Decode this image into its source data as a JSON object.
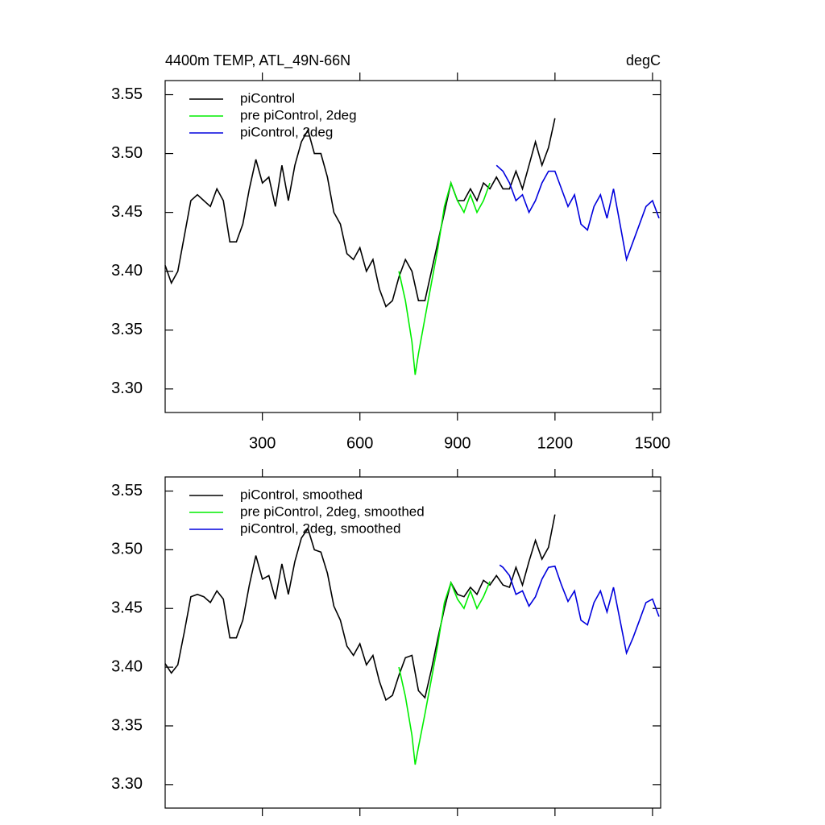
{
  "chart_data": [
    {
      "type": "line",
      "title": "4400m TEMP, ATL_49N-66N",
      "right_title": "degC",
      "xlim": [
        1,
        1525
      ],
      "xticks": [
        300,
        600,
        900,
        1200,
        1500
      ],
      "ylim": [
        3.28,
        3.562
      ],
      "yticks": [
        {
          "value": 3.3,
          "label": "3.30"
        },
        3.35,
        {
          "value": 3.4,
          "label": "3.40"
        },
        3.45,
        {
          "value": 3.5,
          "label": "3.50"
        },
        3.55
      ],
      "series": [
        {
          "name": "piControl",
          "color": "#000000",
          "x": [
            1,
            20,
            40,
            60,
            80,
            100,
            120,
            140,
            160,
            180,
            200,
            220,
            240,
            260,
            280,
            300,
            320,
            340,
            360,
            380,
            400,
            420,
            440,
            460,
            480,
            500,
            520,
            540,
            560,
            580,
            600,
            620,
            640,
            660,
            680,
            700,
            720,
            740,
            760,
            780,
            800,
            820,
            840,
            860,
            880,
            900,
            920,
            940,
            960,
            980,
            1000,
            1020,
            1040,
            1060,
            1080,
            1100,
            1120,
            1140,
            1160,
            1180,
            1200
          ],
          "values": [
            3.405,
            3.39,
            3.4,
            3.43,
            3.46,
            3.465,
            3.46,
            3.455,
            3.47,
            3.46,
            3.425,
            3.425,
            3.44,
            3.47,
            3.495,
            3.475,
            3.48,
            3.455,
            3.49,
            3.46,
            3.49,
            3.51,
            3.52,
            3.5,
            3.5,
            3.48,
            3.45,
            3.44,
            3.415,
            3.41,
            3.42,
            3.4,
            3.41,
            3.385,
            3.37,
            3.375,
            3.395,
            3.41,
            3.4,
            3.375,
            3.375,
            3.4,
            3.425,
            3.45,
            3.475,
            3.46,
            3.46,
            3.47,
            3.46,
            3.475,
            3.47,
            3.48,
            3.47,
            3.47,
            3.485,
            3.47,
            3.49,
            3.51,
            3.49,
            3.505,
            3.53
          ]
        },
        {
          "name": "pre piControl, 2deg",
          "color": "#00ee00",
          "x": [
            720,
            740,
            760,
            770,
            780,
            800,
            820,
            840,
            860,
            880,
            900,
            920,
            940,
            960,
            980,
            1000
          ],
          "values": [
            3.4,
            3.375,
            3.34,
            3.312,
            3.33,
            3.36,
            3.39,
            3.42,
            3.455,
            3.475,
            3.46,
            3.45,
            3.465,
            3.45,
            3.46,
            3.475
          ]
        },
        {
          "name": "piControl, 2deg",
          "color": "#0000dd",
          "x": [
            1020,
            1040,
            1060,
            1080,
            1100,
            1120,
            1140,
            1160,
            1180,
            1200,
            1220,
            1240,
            1260,
            1280,
            1300,
            1320,
            1340,
            1360,
            1380,
            1400,
            1420,
            1440,
            1460,
            1480,
            1500,
            1520
          ],
          "values": [
            3.49,
            3.485,
            3.475,
            3.46,
            3.465,
            3.45,
            3.46,
            3.475,
            3.485,
            3.485,
            3.47,
            3.455,
            3.465,
            3.44,
            3.435,
            3.455,
            3.465,
            3.445,
            3.47,
            3.44,
            3.41,
            3.425,
            3.44,
            3.455,
            3.46,
            3.445
          ]
        }
      ]
    },
    {
      "type": "line",
      "xlim": [
        1,
        1525
      ],
      "xticks": [
        300,
        600,
        900,
        1200,
        1500
      ],
      "ylim": [
        3.28,
        3.562
      ],
      "yticks": [
        {
          "value": 3.3,
          "label": "3.30"
        },
        3.35,
        {
          "value": 3.4,
          "label": "3.40"
        },
        3.45,
        {
          "value": 3.5,
          "label": "3.50"
        },
        3.55
      ],
      "series": [
        {
          "name": "piControl, smoothed",
          "color": "#000000",
          "x": [
            1,
            20,
            40,
            60,
            80,
            100,
            120,
            140,
            160,
            180,
            200,
            220,
            240,
            260,
            280,
            300,
            320,
            340,
            360,
            380,
            400,
            420,
            440,
            460,
            480,
            500,
            520,
            540,
            560,
            580,
            600,
            620,
            640,
            660,
            680,
            700,
            720,
            740,
            760,
            780,
            800,
            820,
            840,
            860,
            880,
            900,
            920,
            940,
            960,
            980,
            1000,
            1020,
            1040,
            1060,
            1080,
            1100,
            1120,
            1140,
            1160,
            1180,
            1200
          ],
          "values": [
            3.403,
            3.395,
            3.402,
            3.43,
            3.46,
            3.462,
            3.46,
            3.455,
            3.465,
            3.458,
            3.425,
            3.425,
            3.44,
            3.47,
            3.495,
            3.475,
            3.478,
            3.458,
            3.488,
            3.462,
            3.49,
            3.51,
            3.518,
            3.5,
            3.498,
            3.48,
            3.452,
            3.44,
            3.418,
            3.41,
            3.42,
            3.402,
            3.41,
            3.388,
            3.372,
            3.376,
            3.393,
            3.408,
            3.41,
            3.38,
            3.374,
            3.398,
            3.425,
            3.45,
            3.472,
            3.462,
            3.46,
            3.468,
            3.462,
            3.474,
            3.47,
            3.478,
            3.47,
            3.468,
            3.485,
            3.47,
            3.49,
            3.508,
            3.492,
            3.502,
            3.53
          ]
        },
        {
          "name": "pre piControl, 2deg, smoothed",
          "color": "#00ee00",
          "x": [
            720,
            740,
            760,
            770,
            780,
            800,
            820,
            840,
            860,
            880,
            900,
            920,
            940,
            960,
            980,
            1000
          ],
          "values": [
            3.4,
            3.375,
            3.342,
            3.317,
            3.332,
            3.36,
            3.39,
            3.42,
            3.455,
            3.472,
            3.458,
            3.45,
            3.465,
            3.45,
            3.46,
            3.473
          ]
        },
        {
          "name": "piControl, 2deg, smoothed",
          "color": "#0000dd",
          "x": [
            1030,
            1040,
            1060,
            1080,
            1100,
            1120,
            1140,
            1160,
            1180,
            1200,
            1220,
            1240,
            1260,
            1280,
            1300,
            1320,
            1340,
            1360,
            1380,
            1400,
            1420,
            1440,
            1460,
            1480,
            1500,
            1520
          ],
          "values": [
            3.487,
            3.485,
            3.478,
            3.462,
            3.465,
            3.452,
            3.46,
            3.475,
            3.485,
            3.486,
            3.47,
            3.456,
            3.465,
            3.44,
            3.436,
            3.455,
            3.465,
            3.447,
            3.468,
            3.44,
            3.412,
            3.425,
            3.44,
            3.455,
            3.458,
            3.443
          ]
        }
      ]
    }
  ]
}
